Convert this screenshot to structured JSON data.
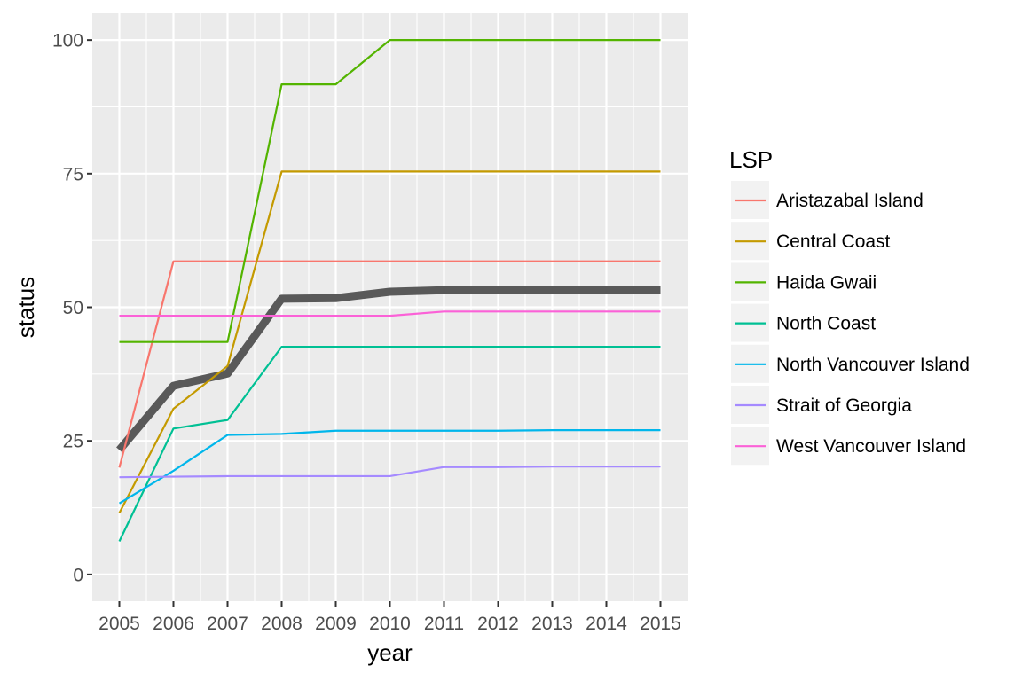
{
  "chart_data": {
    "type": "line",
    "xlabel": "year",
    "ylabel": "status",
    "x": [
      2005,
      2006,
      2007,
      2008,
      2009,
      2010,
      2011,
      2012,
      2013,
      2014,
      2015
    ],
    "x_tick_labels": [
      "2005",
      "2006",
      "2007",
      "2008",
      "2009",
      "2010",
      "2011",
      "2012",
      "2013",
      "2014",
      "2015"
    ],
    "y_ticks": [
      0,
      25,
      50,
      75,
      100
    ],
    "y_tick_labels": [
      "0",
      "25",
      "50",
      "75",
      "100"
    ],
    "xlim": [
      2004.5,
      2015.5
    ],
    "ylim": [
      -5,
      105
    ],
    "grid": true,
    "legend_title": "LSP",
    "legend_position": "right",
    "series": [
      {
        "name": "Aristazabal Island",
        "color": "#F8766D",
        "values": [
          20.0,
          58.6,
          58.6,
          58.6,
          58.6,
          58.6,
          58.6,
          58.6,
          58.6,
          58.6,
          58.6
        ]
      },
      {
        "name": "Central Coast",
        "color": "#C49A00",
        "values": [
          11.5,
          31.0,
          39.0,
          75.4,
          75.4,
          75.4,
          75.4,
          75.4,
          75.4,
          75.4,
          75.4
        ]
      },
      {
        "name": "Haida Gwaii",
        "color": "#53B400",
        "values": [
          43.5,
          43.5,
          43.5,
          91.7,
          91.7,
          100.0,
          100.0,
          100.0,
          100.0,
          100.0,
          100.0
        ]
      },
      {
        "name": "North Coast",
        "color": "#00C094",
        "values": [
          6.2,
          27.3,
          28.9,
          42.6,
          42.6,
          42.6,
          42.6,
          42.6,
          42.6,
          42.6,
          42.6
        ]
      },
      {
        "name": "North Vancouver Island",
        "color": "#00B6EB",
        "values": [
          13.3,
          19.4,
          26.1,
          26.3,
          26.9,
          26.9,
          26.9,
          26.9,
          27.0,
          27.0,
          27.0
        ]
      },
      {
        "name": "Strait of Georgia",
        "color": "#A58AFF",
        "values": [
          18.2,
          18.3,
          18.4,
          18.4,
          18.4,
          18.4,
          20.1,
          20.1,
          20.2,
          20.2,
          20.2
        ]
      },
      {
        "name": "West Vancouver Island",
        "color": "#FB61D7",
        "values": [
          48.4,
          48.4,
          48.4,
          48.4,
          48.4,
          48.4,
          49.2,
          49.2,
          49.2,
          49.2,
          49.2
        ]
      }
    ],
    "overall": {
      "color": "#595959",
      "values": [
        23.3,
        35.3,
        37.6,
        51.6,
        51.7,
        52.9,
        53.2,
        53.2,
        53.3,
        53.3,
        53.3
      ]
    }
  }
}
